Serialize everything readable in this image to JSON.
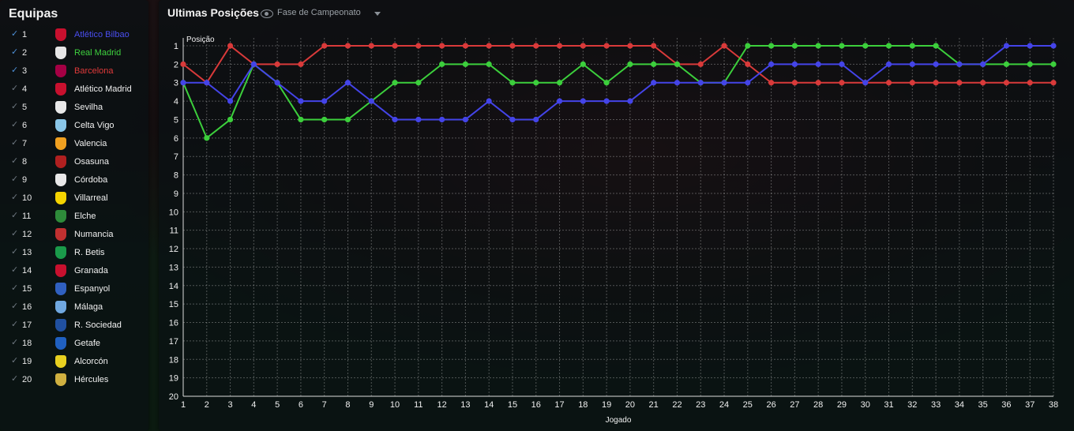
{
  "sidebar": {
    "title": "Equipas",
    "teams": [
      {
        "pos": "1",
        "name": "Atlético Bilbao",
        "checked": true,
        "color": "#4a4ef0",
        "crest": "#c8102e"
      },
      {
        "pos": "2",
        "name": "Real Madrid",
        "checked": true,
        "color": "#3ed13e",
        "crest": "#e6e6e6"
      },
      {
        "pos": "3",
        "name": "Barcelona",
        "checked": true,
        "color": "#e03a3a",
        "crest": "#a50044"
      },
      {
        "pos": "4",
        "name": "Atlético Madrid",
        "checked": false,
        "color": "#f0f0f0",
        "crest": "#c8102e"
      },
      {
        "pos": "5",
        "name": "Sevilha",
        "checked": false,
        "color": "#f0f0f0",
        "crest": "#e8e8e8"
      },
      {
        "pos": "6",
        "name": "Celta Vigo",
        "checked": false,
        "color": "#f0f0f0",
        "crest": "#8ac6e8"
      },
      {
        "pos": "7",
        "name": "Valencia",
        "checked": false,
        "color": "#f0f0f0",
        "crest": "#f0a020"
      },
      {
        "pos": "8",
        "name": "Osasuna",
        "checked": false,
        "color": "#f0f0f0",
        "crest": "#b02020"
      },
      {
        "pos": "9",
        "name": "Córdoba",
        "checked": false,
        "color": "#f0f0f0",
        "crest": "#e8e8e8"
      },
      {
        "pos": "10",
        "name": "Villarreal",
        "checked": false,
        "color": "#f0f0f0",
        "crest": "#f5d300"
      },
      {
        "pos": "11",
        "name": "Elche",
        "checked": false,
        "color": "#f0f0f0",
        "crest": "#2e8b3a"
      },
      {
        "pos": "12",
        "name": "Numancia",
        "checked": false,
        "color": "#f0f0f0",
        "crest": "#c03030"
      },
      {
        "pos": "13",
        "name": "R. Betis",
        "checked": false,
        "color": "#f0f0f0",
        "crest": "#1a9a4a"
      },
      {
        "pos": "14",
        "name": "Granada",
        "checked": false,
        "color": "#f0f0f0",
        "crest": "#c8102e"
      },
      {
        "pos": "15",
        "name": "Espanyol",
        "checked": false,
        "color": "#f0f0f0",
        "crest": "#3060c0"
      },
      {
        "pos": "16",
        "name": "Málaga",
        "checked": false,
        "color": "#f0f0f0",
        "crest": "#70a8e0"
      },
      {
        "pos": "17",
        "name": "R. Sociedad",
        "checked": false,
        "color": "#f0f0f0",
        "crest": "#2050a0"
      },
      {
        "pos": "18",
        "name": "Getafe",
        "checked": false,
        "color": "#f0f0f0",
        "crest": "#2060c0"
      },
      {
        "pos": "19",
        "name": "Alcorcón",
        "checked": false,
        "color": "#f0f0f0",
        "crest": "#e8d020"
      },
      {
        "pos": "20",
        "name": "Hércules",
        "checked": false,
        "color": "#f0f0f0",
        "crest": "#d0b040"
      }
    ]
  },
  "header": {
    "title": "Ultimas Posições",
    "filter_label": "Fase de Campeonato",
    "eye_icon": "eye-icon",
    "caret_icon": "chevron-down-icon"
  },
  "chart_data": {
    "type": "line",
    "xlabel": "Jogado",
    "ylabel": "Posição",
    "xlim": [
      1,
      38
    ],
    "ylim": [
      20,
      1
    ],
    "y_inverted": true,
    "grid": true,
    "x": [
      1,
      2,
      3,
      4,
      5,
      6,
      7,
      8,
      9,
      10,
      11,
      12,
      13,
      14,
      15,
      16,
      17,
      18,
      19,
      20,
      21,
      22,
      23,
      24,
      25,
      26,
      27,
      28,
      29,
      30,
      31,
      32,
      33,
      34,
      35,
      36,
      37,
      38
    ],
    "y_ticks": [
      1,
      2,
      3,
      4,
      5,
      6,
      7,
      8,
      9,
      10,
      11,
      12,
      13,
      14,
      15,
      16,
      17,
      18,
      19,
      20
    ],
    "series": [
      {
        "name": "Barcelona",
        "color": "#d93a3a",
        "values": [
          2,
          3,
          1,
          2,
          2,
          2,
          1,
          1,
          1,
          1,
          1,
          1,
          1,
          1,
          1,
          1,
          1,
          1,
          1,
          1,
          1,
          2,
          2,
          1,
          2,
          3,
          3,
          3,
          3,
          3,
          3,
          3,
          3,
          3,
          3,
          3,
          3,
          3
        ]
      },
      {
        "name": "Real Madrid",
        "color": "#3ccf3c",
        "values": [
          3,
          6,
          5,
          2,
          3,
          5,
          5,
          5,
          4,
          3,
          3,
          2,
          2,
          2,
          3,
          3,
          3,
          2,
          3,
          2,
          2,
          2,
          3,
          3,
          1,
          1,
          1,
          1,
          1,
          1,
          1,
          1,
          1,
          2,
          2,
          2,
          2,
          2
        ]
      },
      {
        "name": "Atlético Bilbao",
        "color": "#4444e8",
        "values": [
          3,
          3,
          4,
          2,
          3,
          4,
          4,
          3,
          4,
          5,
          5,
          5,
          5,
          4,
          5,
          5,
          4,
          4,
          4,
          4,
          3,
          3,
          3,
          3,
          3,
          2,
          2,
          2,
          2,
          3,
          2,
          2,
          2,
          2,
          2,
          1,
          1,
          1
        ]
      }
    ]
  }
}
